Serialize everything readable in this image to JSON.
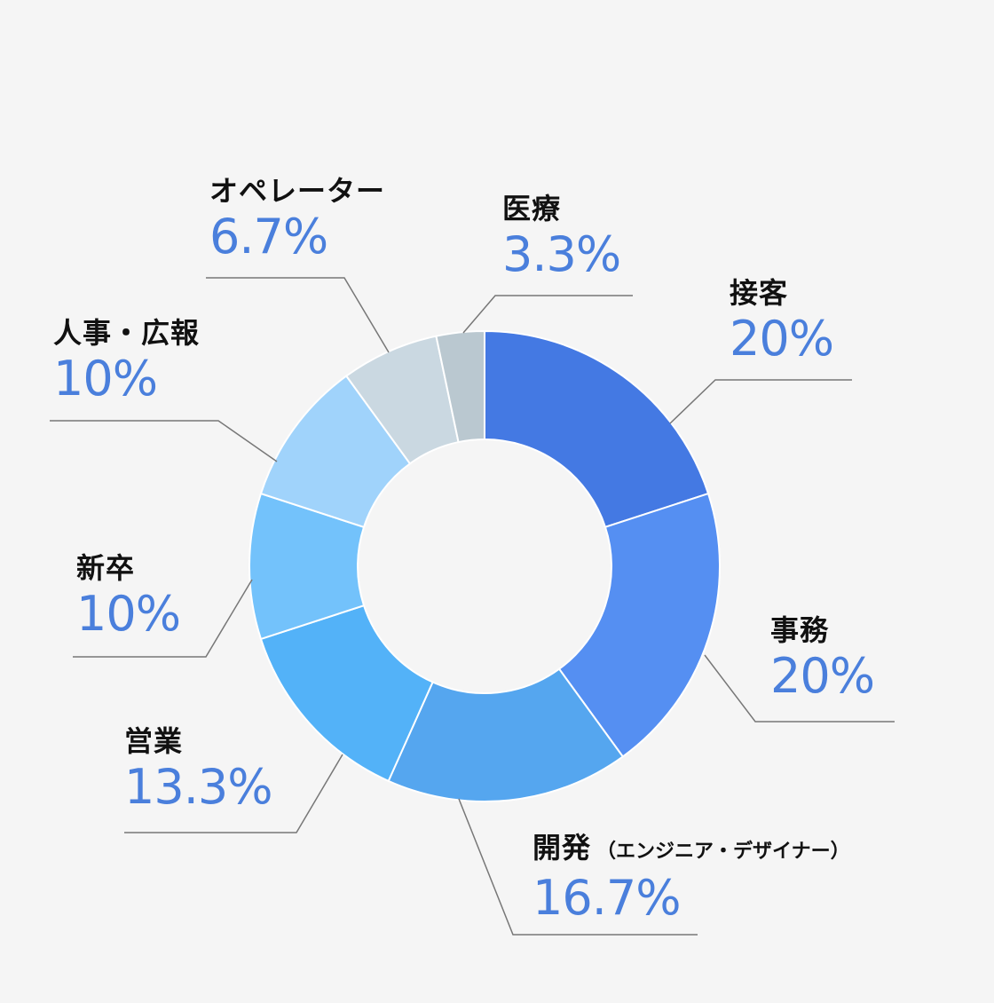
{
  "chart_data": {
    "type": "pie",
    "donut": true,
    "slices": [
      {
        "name": "接客",
        "value": 20,
        "label": "20%",
        "color": "#4479e3"
      },
      {
        "name": "事務",
        "value": 20,
        "label": "20%",
        "color": "#558ff2"
      },
      {
        "name": "開発",
        "sub": "（エンジニア・デザイナー）",
        "value": 16.7,
        "label": "16.7%",
        "color": "#55a6ef"
      },
      {
        "name": "営業",
        "value": 13.3,
        "label": "13.3%",
        "color": "#53b2f8"
      },
      {
        "name": "新卒",
        "value": 10,
        "label": "10%",
        "color": "#73c2fb"
      },
      {
        "name": "人事・広報",
        "value": 10,
        "label": "10%",
        "color": "#a0d3fb"
      },
      {
        "name": "オペレーター",
        "value": 6.7,
        "label": "6.7%",
        "color": "#cad8e1"
      },
      {
        "name": "医療",
        "value": 3.3,
        "label": "3.3%",
        "color": "#bac8d0"
      }
    ],
    "label_color": "#4a7fdc",
    "leader_line_color": "#777777"
  }
}
